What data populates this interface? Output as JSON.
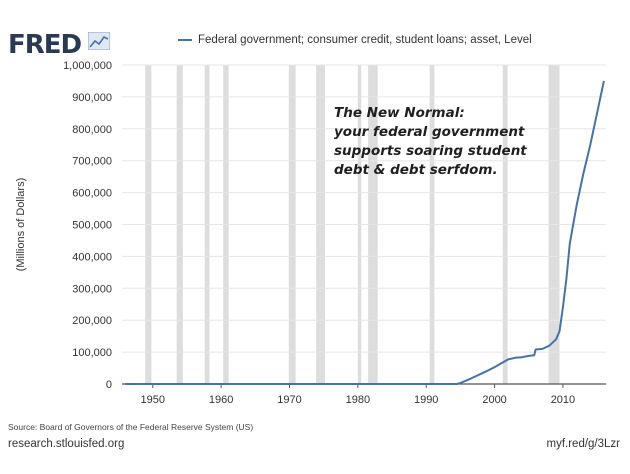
{
  "header": {
    "logo_text": "FRED",
    "legend_label": "Federal government; consumer credit, student loans; asset, Level",
    "series_color": "#4572a7"
  },
  "annotation": {
    "lines": [
      "The New Normal:",
      "your federal government",
      "supports soaring student",
      "debt & debt serfdom."
    ]
  },
  "footer": {
    "source": "Source: Board of Governors of the Federal Reserve System (US)",
    "site": "research.stlouisfed.org",
    "shortlink": "myf.red/g/3Lzr"
  },
  "chart_data": {
    "type": "line",
    "ylabel": "(Millions of Dollars)",
    "xlim": [
      1945.5,
      2016.3
    ],
    "ylim": [
      0,
      1000000
    ],
    "x_ticks": [
      1950,
      1960,
      1970,
      1980,
      1990,
      2000,
      2010
    ],
    "y_ticks": [
      0,
      100000,
      200000,
      300000,
      400000,
      500000,
      600000,
      700000,
      800000,
      900000,
      1000000
    ],
    "y_tick_labels": [
      "0",
      "100,000",
      "200,000",
      "300,000",
      "400,000",
      "500,000",
      "600,000",
      "700,000",
      "800,000",
      "900,000",
      "1,000,000"
    ],
    "grid": true,
    "recession_color": "#dddddd",
    "recessions": [
      [
        1948.9,
        1949.8
      ],
      [
        1953.5,
        1954.4
      ],
      [
        1957.6,
        1958.3
      ],
      [
        1960.3,
        1961.1
      ],
      [
        1969.9,
        1970.9
      ],
      [
        1973.9,
        1975.2
      ],
      [
        1980.0,
        1980.5
      ],
      [
        1981.5,
        1982.9
      ],
      [
        1990.5,
        1991.2
      ],
      [
        2001.2,
        2001.9
      ],
      [
        2007.9,
        2009.5
      ]
    ],
    "series": [
      {
        "color": "#4572a7",
        "points": [
          [
            1946,
            0
          ],
          [
            1994.5,
            0
          ],
          [
            1995,
            3000
          ],
          [
            1996,
            12000
          ],
          [
            1997,
            22000
          ],
          [
            1998,
            32000
          ],
          [
            1999,
            42000
          ],
          [
            2000,
            53000
          ],
          [
            2001,
            65000
          ],
          [
            2002,
            77000
          ],
          [
            2003,
            82000
          ],
          [
            2004,
            84000
          ],
          [
            2005,
            88000
          ],
          [
            2005.8,
            90000
          ],
          [
            2006,
            108000
          ],
          [
            2007,
            110000
          ],
          [
            2008,
            120000
          ],
          [
            2009,
            140000
          ],
          [
            2009.5,
            165000
          ],
          [
            2010,
            240000
          ],
          [
            2010.5,
            330000
          ],
          [
            2011,
            440000
          ],
          [
            2012,
            560000
          ],
          [
            2013,
            660000
          ],
          [
            2014,
            750000
          ],
          [
            2015,
            850000
          ],
          [
            2016,
            950000
          ]
        ]
      }
    ]
  }
}
